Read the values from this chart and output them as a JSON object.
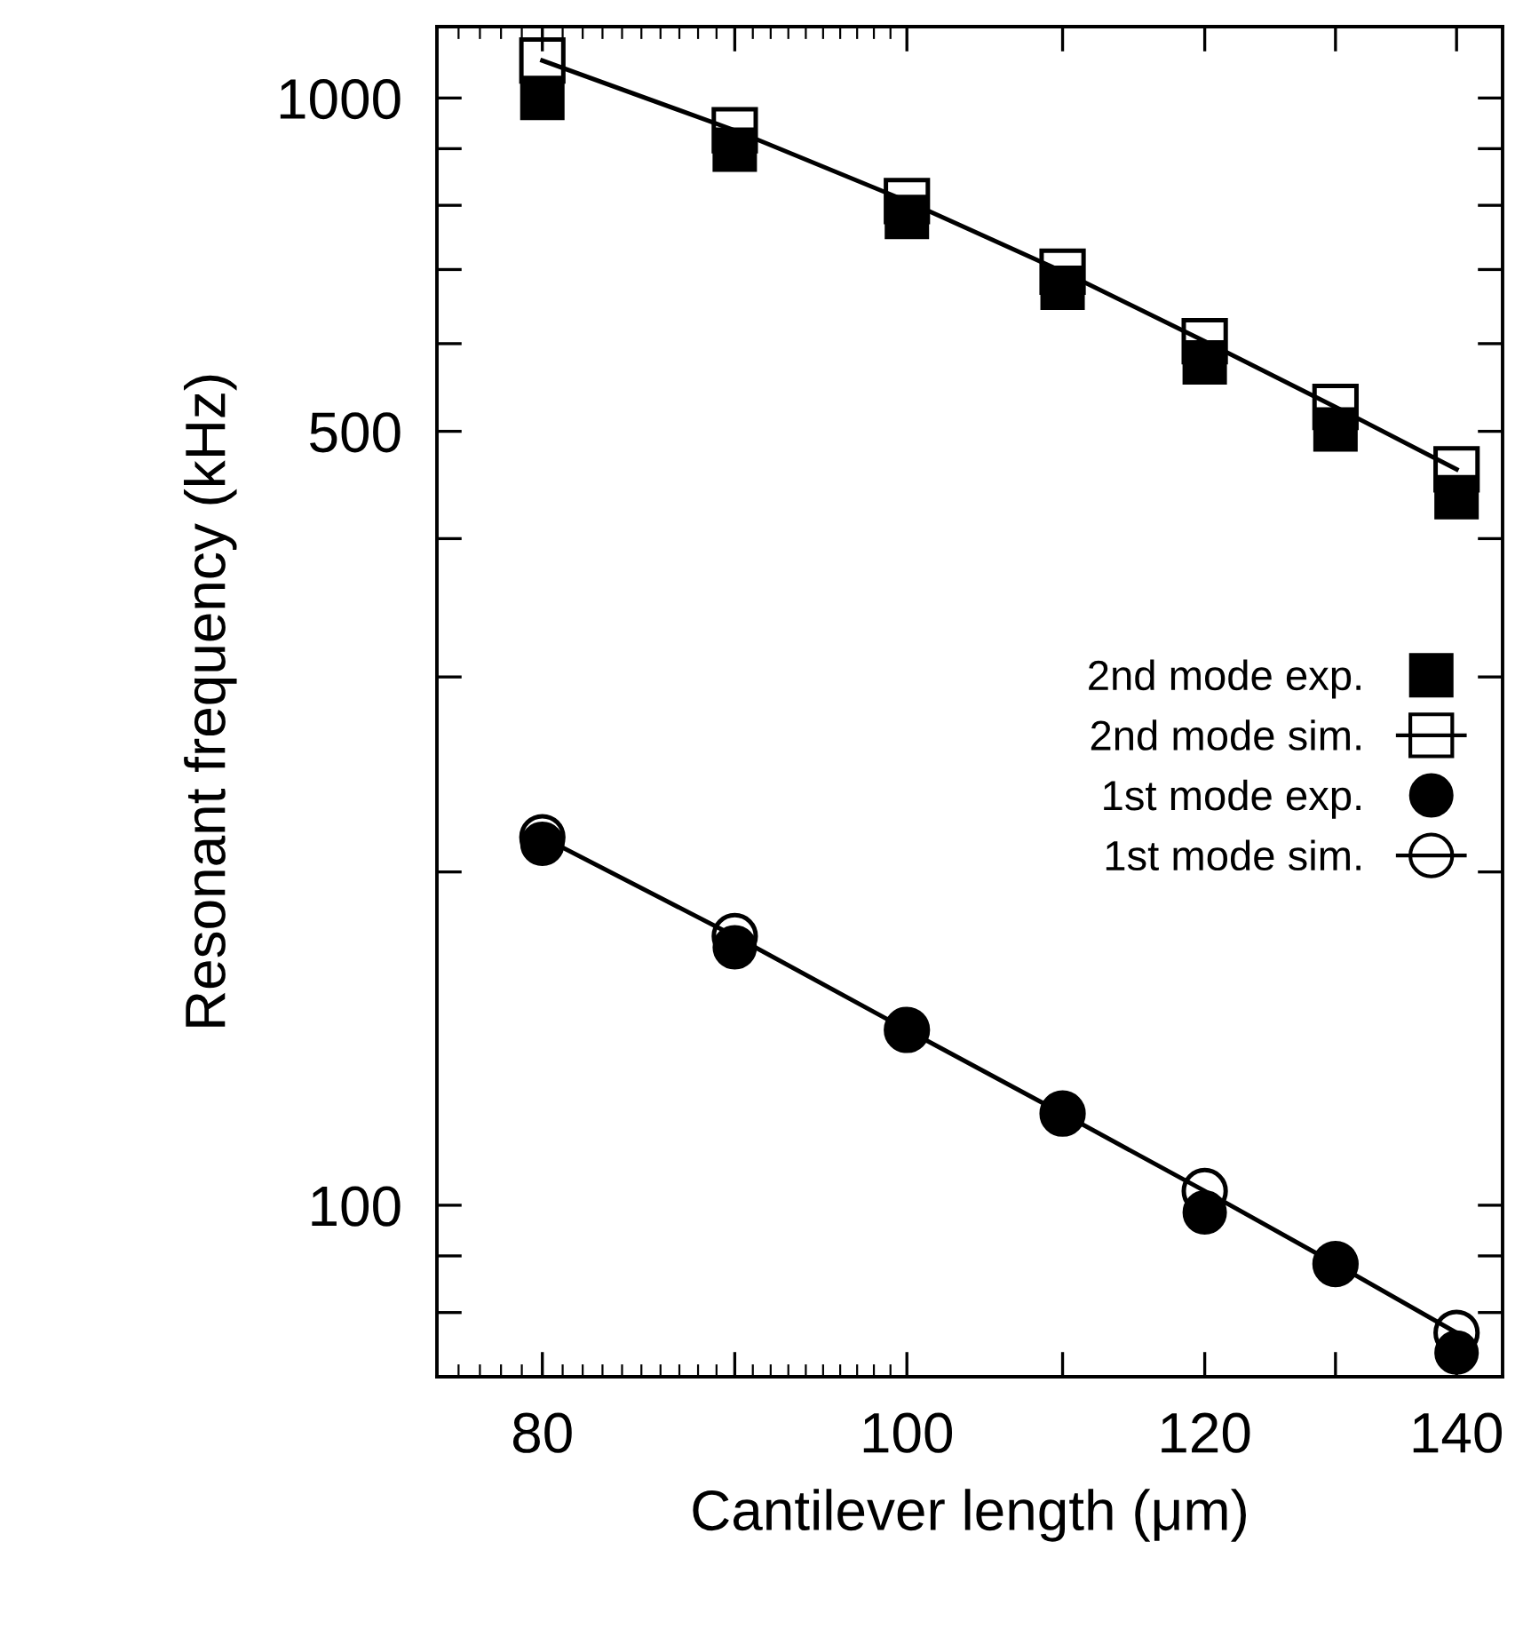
{
  "chart_data": {
    "type": "scatter",
    "xlabel": "Cantilever length (μm)",
    "ylabel": "Resonant frequency (kHz)",
    "log": "xy",
    "x": [
      80,
      90,
      100,
      110,
      120,
      130,
      140
    ],
    "xlim": [
      75,
      144
    ],
    "xticks": [
      80,
      {
        "value": 90,
        "label": null
      },
      100,
      {
        "value": 110,
        "label": null
      },
      120,
      {
        "value": 130,
        "label": null
      },
      140
    ],
    "ylim": [
      70,
      1160
    ],
    "yticks": [
      {
        "value": 80,
        "label": null
      },
      {
        "value": 90,
        "label": null
      },
      100,
      {
        "value": 200,
        "label": null
      },
      {
        "value": 300,
        "label": null
      },
      {
        "value": 400,
        "label": null
      },
      500,
      {
        "value": 600,
        "label": null
      },
      {
        "value": 700,
        "label": null
      },
      {
        "value": 800,
        "label": null
      },
      {
        "value": 900,
        "label": null
      },
      1000
    ],
    "grid": false,
    "legend": "center right",
    "series": [
      {
        "name": "2nd mode exp.",
        "marker": "square",
        "color": "#000000",
        "values": [
          1000,
          898,
          781,
          674,
          577,
          502,
          436
        ]
      },
      {
        "name": "2nd mode sim.",
        "type": "line",
        "marker": "square",
        "line_style": "solid",
        "color": "#000000",
        "values": [
          1081,
          935,
          807,
          697,
          603,
          526,
          462
        ]
      },
      {
        "name": "1st mode exp.",
        "marker": "circle",
        "color": "#000000",
        "values": [
          212,
          171,
          144,
          121,
          98.5,
          88.5,
          73.6
        ]
      },
      {
        "name": "1st mode sim.",
        "type": "line",
        "marker": "circle",
        "line_style": "solid",
        "color": "#000000",
        "values": [
          215,
          175,
          144,
          121,
          103,
          88.5,
          76.7
        ]
      }
    ]
  }
}
